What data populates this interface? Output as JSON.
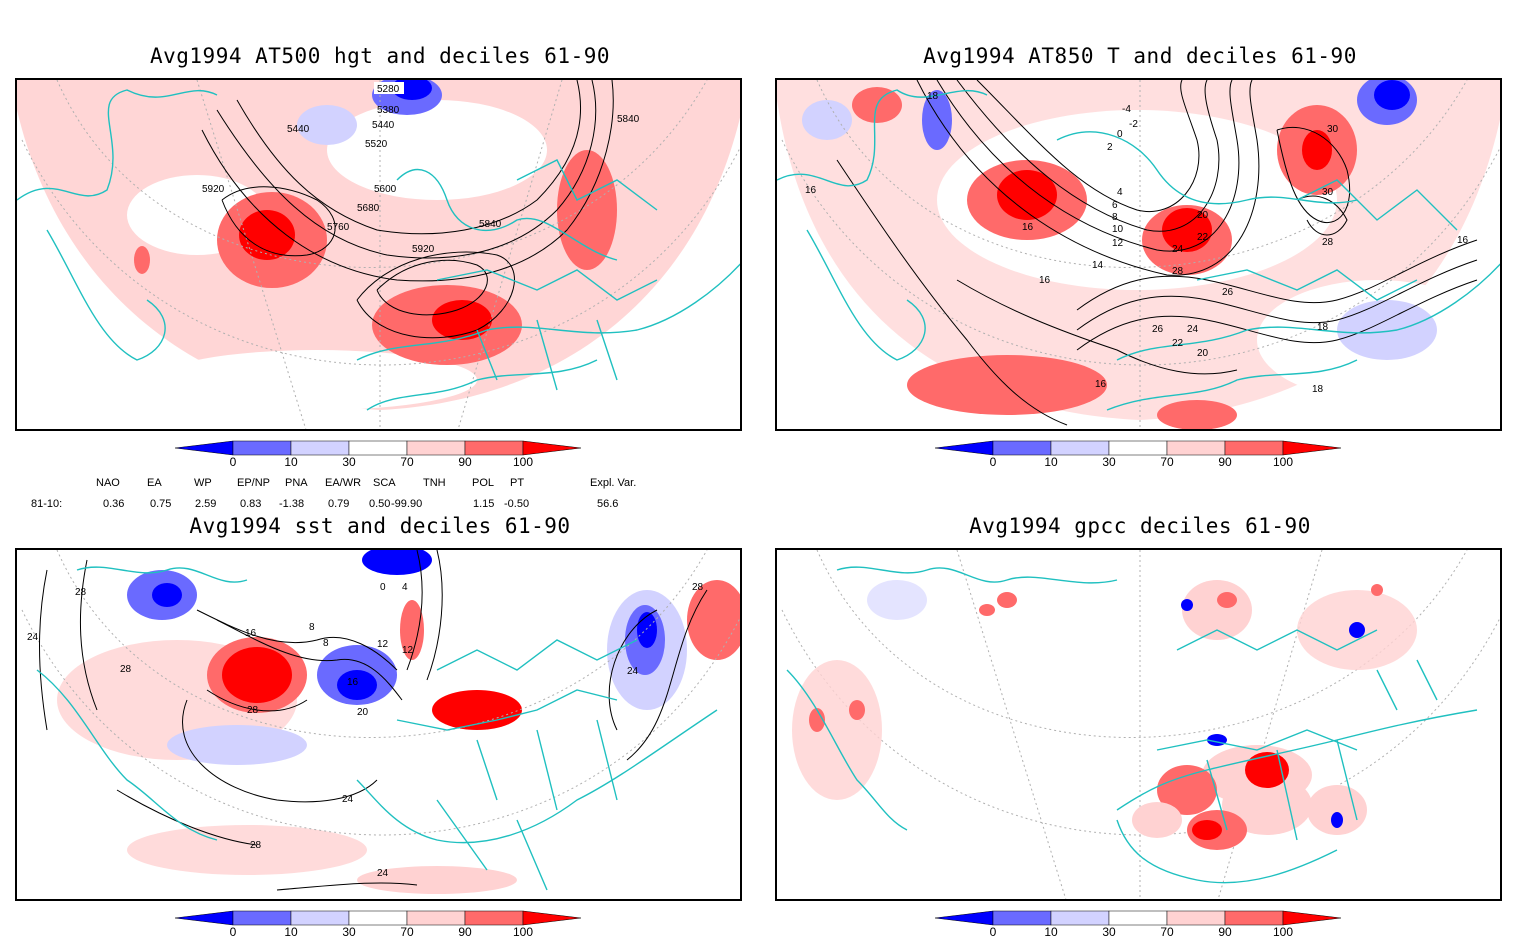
{
  "panels": [
    {
      "title": "Avg1994 AT500 hgt and deciles 61-90",
      "contour_labels": [
        "5280",
        "5380",
        "5440",
        "5440",
        "5520",
        "5600",
        "5680",
        "5760",
        "5840",
        "5840",
        "5920",
        "5920"
      ]
    },
    {
      "title": "Avg1994 AT850 T and deciles 61-90",
      "contour_labels": [
        "-4",
        "-2",
        "0",
        "2",
        "4",
        "6",
        "8",
        "10",
        "12",
        "14",
        "16",
        "16",
        "16",
        "16",
        "16",
        "18",
        "18",
        "20",
        "20",
        "22",
        "22",
        "24",
        "24",
        "26",
        "26",
        "28",
        "28",
        "30",
        "30",
        "18"
      ]
    },
    {
      "title": "Avg1994 sst and deciles 61-90",
      "contour_labels": [
        "28",
        "24",
        "28",
        "16",
        "8",
        "8",
        "12",
        "16",
        "20",
        "24",
        "28",
        "28",
        "24",
        "4",
        "0",
        "12",
        "28",
        "24"
      ]
    },
    {
      "title": "Avg1994 gpcc deciles 61-90",
      "contour_labels": []
    }
  ],
  "colorbar": {
    "ticks": [
      "0",
      "10",
      "30",
      "70",
      "90",
      "100"
    ],
    "colors": [
      "#0000ff",
      "#6a6aff",
      "#d2d2ff",
      "#ffffff",
      "#ffd2d2",
      "#ff6a6a",
      "#ff0000"
    ]
  },
  "indices": {
    "headers": [
      "NAO",
      "EA",
      "WP",
      "EP/NP",
      "PNA",
      "EA/WR",
      "SCA",
      "TNH",
      "POL",
      "PT",
      "Expl. Var."
    ],
    "row_label": "81-10:",
    "values": [
      "0.36",
      "0.75",
      "2.59",
      "0.83",
      "-1.38",
      "0.79",
      "0.50",
      "-99.90",
      "1.15",
      "-0.50",
      "56.6"
    ]
  },
  "colors": {
    "coast": "#20c0c0",
    "grid": "#b0b0b0",
    "contour": "#000000"
  }
}
